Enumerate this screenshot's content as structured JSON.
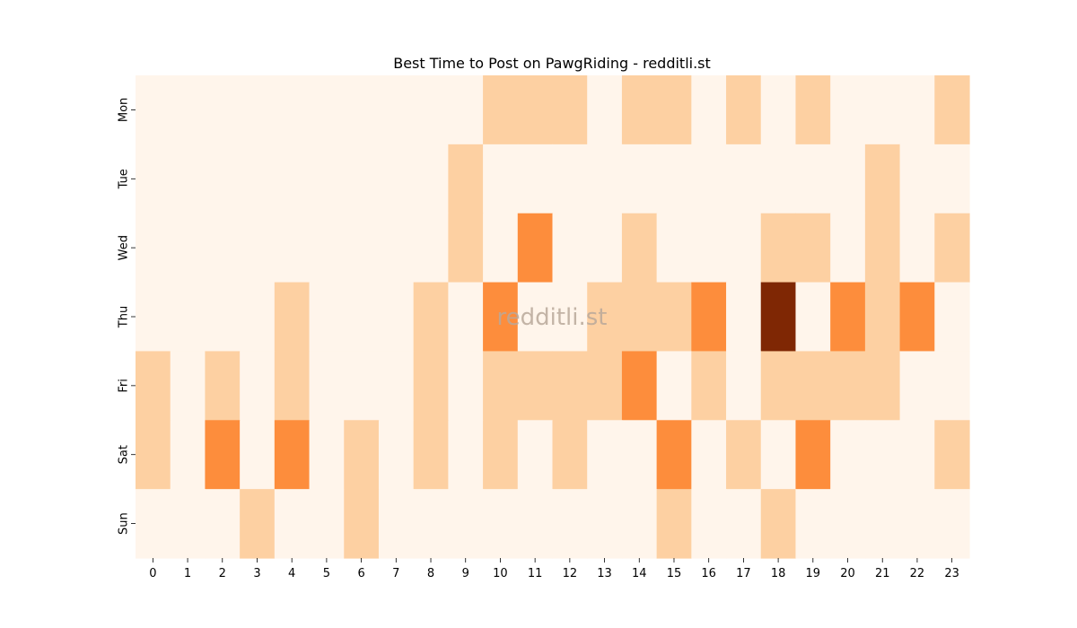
{
  "chart_data": {
    "type": "heatmap",
    "title": "Best Time to Post on PawgRiding - redditli.st",
    "watermark": "redditli.st",
    "x_categories": [
      "0",
      "1",
      "2",
      "3",
      "4",
      "5",
      "6",
      "7",
      "8",
      "9",
      "10",
      "11",
      "12",
      "13",
      "14",
      "15",
      "16",
      "17",
      "18",
      "19",
      "20",
      "21",
      "22",
      "23"
    ],
    "y_categories": [
      "Mon",
      "Tue",
      "Wed",
      "Thu",
      "Fri",
      "Sat",
      "Sun"
    ],
    "values": [
      [
        0,
        0,
        0,
        0,
        0,
        0,
        0,
        0,
        0,
        0,
        1,
        1,
        1,
        0,
        1,
        1,
        0,
        1,
        0,
        1,
        0,
        0,
        0,
        1
      ],
      [
        0,
        0,
        0,
        0,
        0,
        0,
        0,
        0,
        0,
        1,
        0,
        0,
        0,
        0,
        0,
        0,
        0,
        0,
        0,
        0,
        0,
        1,
        0,
        0
      ],
      [
        0,
        0,
        0,
        0,
        0,
        0,
        0,
        0,
        0,
        1,
        0,
        2,
        0,
        0,
        1,
        0,
        0,
        0,
        1,
        1,
        0,
        1,
        0,
        1
      ],
      [
        0,
        0,
        0,
        0,
        1,
        0,
        0,
        0,
        1,
        0,
        2,
        0,
        0,
        1,
        1,
        1,
        2,
        0,
        4,
        0,
        2,
        1,
        2,
        0
      ],
      [
        1,
        0,
        1,
        0,
        1,
        0,
        0,
        0,
        1,
        0,
        1,
        1,
        1,
        1,
        2,
        0,
        1,
        0,
        1,
        1,
        1,
        1,
        0,
        0
      ],
      [
        1,
        0,
        2,
        0,
        2,
        0,
        1,
        0,
        1,
        0,
        1,
        0,
        1,
        0,
        0,
        2,
        0,
        1,
        0,
        2,
        0,
        0,
        0,
        1
      ],
      [
        0,
        0,
        0,
        1,
        0,
        0,
        1,
        0,
        0,
        0,
        0,
        0,
        0,
        0,
        0,
        1,
        0,
        0,
        1,
        0,
        0,
        0,
        0,
        0
      ]
    ],
    "colors": [
      "#fff5eb",
      "#fdd0a2",
      "#fd8d3c",
      "#d94801",
      "#7f2704"
    ],
    "vmin": 0,
    "vmax": 4,
    "colorscale": "Oranges",
    "grid": false,
    "legend": "none"
  }
}
